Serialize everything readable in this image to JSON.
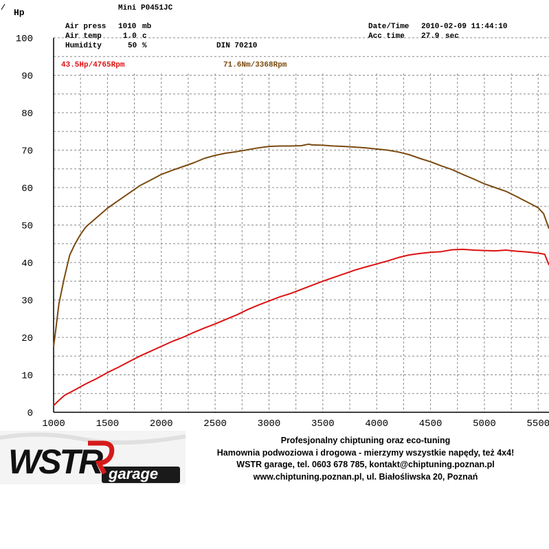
{
  "chart_data": {
    "type": "line",
    "y_unit_label": "Hp",
    "title": "Mini P0451JC",
    "xlim": [
      1000,
      5600
    ],
    "ylim": [
      0,
      100
    ],
    "x_ticks": [
      1000,
      1500,
      2000,
      2500,
      3000,
      3500,
      4000,
      4500,
      5000,
      5500
    ],
    "y_ticks": [
      0,
      10,
      20,
      30,
      40,
      50,
      60,
      70,
      80,
      90,
      100
    ],
    "grid": true,
    "conditions": {
      "air_press": {
        "label": "Air press",
        "value": "1010",
        "unit": "mb"
      },
      "air_temp": {
        "label": "Air temp",
        "value": "1.0",
        "unit": "c"
      },
      "humidity": {
        "label": "Humidity",
        "value": "50",
        "unit": "%"
      },
      "norm": "DIN 70210",
      "date_time": {
        "label": "Date/Time",
        "value": "2010-02-09 11:44:10"
      },
      "acc_time": {
        "label": "Acc time",
        "value": "27.9",
        "unit": "sec"
      }
    },
    "annotations": {
      "power_peak": "43.5Hp/4765Rpm",
      "torque_peak": "71.6Nm/3368Rpm"
    },
    "series": [
      {
        "name": "Power",
        "color": "#dd1111",
        "x": [
          1000,
          1050,
          1100,
          1200,
          1300,
          1400,
          1500,
          1600,
          1700,
          1800,
          1900,
          2000,
          2100,
          2200,
          2300,
          2400,
          2500,
          2600,
          2700,
          2800,
          2900,
          3000,
          3100,
          3200,
          3300,
          3400,
          3500,
          3600,
          3700,
          3800,
          3900,
          4000,
          4100,
          4200,
          4300,
          4400,
          4500,
          4600,
          4700,
          4800,
          4900,
          5000,
          5100,
          5200,
          5300,
          5400,
          5500,
          5560,
          5600
        ],
        "y": [
          1.8,
          3.2,
          4.5,
          6.0,
          7.6,
          9.0,
          10.6,
          12.0,
          13.5,
          15.0,
          16.3,
          17.6,
          18.9,
          20.0,
          21.3,
          22.5,
          23.6,
          24.8,
          26.0,
          27.4,
          28.6,
          29.7,
          30.8,
          31.7,
          32.8,
          33.9,
          35.0,
          36.0,
          37.0,
          38.0,
          38.8,
          39.6,
          40.4,
          41.3,
          42.0,
          42.4,
          42.7,
          42.9,
          43.4,
          43.5,
          43.3,
          43.2,
          43.1,
          43.3,
          43.0,
          42.8,
          42.5,
          42.2,
          39.3
        ]
      },
      {
        "name": "Torque",
        "color": "#7a4a10",
        "x": [
          1000,
          1020,
          1050,
          1100,
          1150,
          1200,
          1250,
          1300,
          1400,
          1500,
          1600,
          1700,
          1800,
          1900,
          2000,
          2100,
          2200,
          2300,
          2400,
          2500,
          2600,
          2700,
          2800,
          2900,
          3000,
          3100,
          3200,
          3300,
          3368,
          3400,
          3500,
          3600,
          3700,
          3800,
          3900,
          4000,
          4100,
          4200,
          4300,
          4400,
          4500,
          4600,
          4700,
          4800,
          4900,
          5000,
          5100,
          5200,
          5300,
          5400,
          5500,
          5550,
          5600
        ],
        "y": [
          17.5,
          22.0,
          29.0,
          36.0,
          42.0,
          45.0,
          47.5,
          49.5,
          52.0,
          54.5,
          56.5,
          58.5,
          60.5,
          62.0,
          63.5,
          64.6,
          65.6,
          66.6,
          67.8,
          68.6,
          69.2,
          69.6,
          70.1,
          70.6,
          71.0,
          71.1,
          71.1,
          71.2,
          71.6,
          71.4,
          71.3,
          71.1,
          71.0,
          70.8,
          70.6,
          70.3,
          70.0,
          69.5,
          68.8,
          67.8,
          66.9,
          65.8,
          64.8,
          63.5,
          62.3,
          61.0,
          60.0,
          59.0,
          57.6,
          56.1,
          54.6,
          53.0,
          49.0
        ]
      }
    ]
  },
  "footer": {
    "line1": "Profesjonalny chiptuning oraz eco-tuning",
    "line2": "Hamownia podwoziowa i drogowa - mierzymy wszystkie napędy, też 4x4!",
    "line3": "WSTR garage, tel. 0603 678 785, kontakt@chiptuning.poznan.pl",
    "line4": "www.chiptuning.poznan.pl, ul. Białośliwska 20, Poznań"
  },
  "logo": {
    "brand": "WSTR",
    "sub": "garage"
  }
}
